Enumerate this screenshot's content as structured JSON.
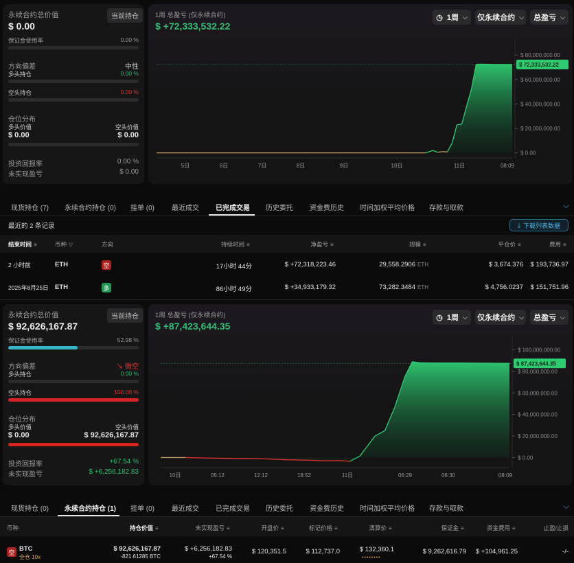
{
  "top": {
    "summary": {
      "title": "永续合约总价值",
      "tag": "当前持仓",
      "total": "$ 0.00",
      "margin_label": "保证金使用率",
      "margin_value": "0.00 %",
      "margin_fraction": 0,
      "bias_label": "方向偏差",
      "bias_value": "中性",
      "long_label": "多头持仓",
      "long_value": "0.00 %",
      "long_fraction": 0,
      "short_label": "空头持仓",
      "short_value": "0.00 %",
      "short_fraction": 0,
      "dist_label": "仓位分布",
      "long_val_label": "多头价值",
      "short_val_label": "空头价值",
      "long_val": "$ 0.00",
      "short_val": "$ 0.00",
      "roi_label": "投资回报率",
      "roi_value": "0.00 %",
      "upnl_label": "未实现盈亏",
      "upnl_value": "$ 0.00"
    },
    "chart_header": {
      "title": "1周 总盈亏 (仅永续合约)",
      "value": "$ +72,333,532.22",
      "btn_period": "1周",
      "btn_scope": "仅永续合约",
      "btn_metric": "总盈亏"
    },
    "chart_data": {
      "type": "area",
      "x_ticks": [
        "5日",
        "6日",
        "7日",
        "8日",
        "9日",
        "10日",
        "11日",
        "08:09"
      ],
      "y_ticks": [
        "$ 80,000,000.00",
        "$ 60,000,000.00",
        "$ 40,000,000.00",
        "$ 20,000,000.00",
        "$ 0.00"
      ],
      "ylim": [
        -3000000,
        88000000
      ],
      "current_label": "$ 72,333,532.22",
      "x": [
        0,
        1,
        2,
        3,
        4,
        5,
        5.6,
        5.75,
        5.85,
        5.95,
        6.05,
        6.15,
        6.25,
        6.35,
        6.45,
        6.55,
        6.65,
        6.75,
        7.0,
        7.4
      ],
      "y": [
        0,
        0,
        0,
        0,
        0,
        0,
        0,
        2000000,
        500000,
        1000000,
        800000,
        8000000,
        23000000,
        23500000,
        38000000,
        52000000,
        72500000,
        72600000,
        72400000,
        72333532
      ]
    }
  },
  "tabs1": {
    "items": [
      "现货持仓 (7)",
      "永续合约持仓 (0)",
      "挂单 (0)",
      "最近成交",
      "已完成交易",
      "历史委托",
      "资金费历史",
      "时间加权平均价格",
      "存款与取款"
    ],
    "active": 4
  },
  "records": {
    "summary": "最近的 2 条记录",
    "download": "下载列表数据",
    "headers": [
      "结束时间",
      "币种",
      "方向",
      "持续时间",
      "净盈亏",
      "规模",
      "平仓价",
      "费用"
    ],
    "rows": [
      {
        "time": "2 小时前",
        "coin": "ETH",
        "side": "空",
        "side_color": "#b0201d",
        "duration": "17小时 44分",
        "pnl": "$ +72,318,223.46",
        "size": "29,558.2906",
        "unit": "ETH",
        "close": "$ 3,674.376",
        "fee": "$ 193,736.97"
      },
      {
        "time": "2025年8月25日",
        "coin": "ETH",
        "side": "多",
        "side_color": "#1f9a55",
        "duration": "86小时 49分",
        "pnl": "$ +34,933,179.32",
        "size": "73,282.3484",
        "unit": "ETH",
        "close": "$ 4,756.0237",
        "fee": "$ 151,751.96"
      }
    ]
  },
  "bottom": {
    "summary": {
      "title": "永续合约总价值",
      "tag": "当前持仓",
      "total": "$ 92,626,167.87",
      "margin_label": "保证金使用率",
      "margin_value": "52.98 %",
      "margin_fraction": 0.5298,
      "bias_label": "方向偏差",
      "bias_value": "微空",
      "long_label": "多头持仓",
      "long_value": "0.00 %",
      "long_fraction": 0,
      "short_label": "空头持仓",
      "short_value": "100.00 %",
      "short_fraction": 1,
      "dist_label": "仓位分布",
      "long_val_label": "多头价值",
      "short_val_label": "空头价值",
      "long_val": "$ 0.00",
      "short_val": "$ 92,626,167.87",
      "roi_label": "投资回报率",
      "roi_value": "+67.54 %",
      "upnl_label": "未实现盈亏",
      "upnl_value": "$ +6,256,182.83"
    },
    "chart_header": {
      "title": "1周 总盈亏 (仅永续合约)",
      "value": "$ +87,423,644.35",
      "btn_period": "1周",
      "btn_scope": "仅永续合约",
      "btn_metric": "总盈亏"
    },
    "chart_data": {
      "type": "area",
      "x_ticks": [
        "10日",
        "05:12",
        "12:12",
        "18:52",
        "11日",
        "06:29",
        "06:30",
        "08:09"
      ],
      "y_ticks": [
        "$ 100,000,000.00",
        "$ 80,000,000.00",
        "$ 60,000,000.00",
        "$ 40,000,000.00",
        "$ 20,000,000.00",
        "$ 0.00"
      ],
      "ylim": [
        -8000000,
        108000000
      ],
      "current_label": "$ 87,423,644.35",
      "x": [
        0,
        0.5,
        1,
        1.5,
        2,
        2.5,
        3,
        3.3,
        3.6,
        3.8,
        4,
        4.3,
        4.5,
        4.7,
        4.9,
        5.05,
        5.2,
        5.5,
        6,
        6.5,
        7
      ],
      "y": [
        0,
        0,
        -500000,
        -800000,
        -1000000,
        -2000000,
        -2500000,
        -3000000,
        -2800000,
        -3500000,
        1500000,
        20000000,
        25000000,
        47000000,
        75000000,
        89000000,
        88000000,
        87800000,
        87800000,
        87700000,
        87423644
      ]
    }
  },
  "tabs2": {
    "items": [
      "现货持仓 (0)",
      "永续合约持仓 (1)",
      "挂单 (0)",
      "最近成交",
      "已完成交易",
      "历史委托",
      "资金费历史",
      "时间加权平均价格",
      "存款与取款"
    ],
    "active": 1
  },
  "positions": {
    "headers": [
      "币种",
      "持仓价值",
      "未实现盈亏",
      "开盘价",
      "标记价格",
      "清算价",
      "保证金",
      "资金费用",
      "止盈/止损"
    ],
    "row": {
      "side": "空",
      "coin": "BTC",
      "mode": "全仓 10x",
      "value": "$ 92,626,167.87",
      "qty": "-821.61285 BTC",
      "upnl": "$ +6,256,182.83",
      "upnl_pct": "+67.54 %",
      "entry": "$ 120,351.5",
      "mark": "$ 112,737.0",
      "liq": "$ 132,360.1",
      "margin": "$ 9,262,616.79",
      "funding": "$ +104,961.25",
      "tpsl": "-/-"
    }
  }
}
